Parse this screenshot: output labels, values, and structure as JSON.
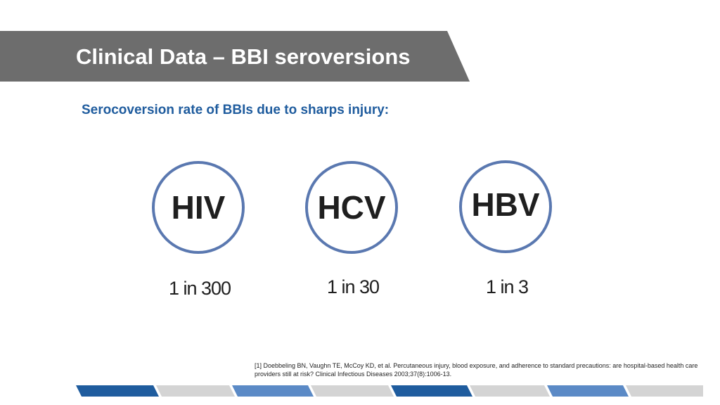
{
  "slide": {
    "title": "Clinical Data – BBI seroversions",
    "subtitle": "Serocoversion rate of BBIs due to sharps injury:",
    "viruses": [
      {
        "name": "HIV",
        "rate": "1 in 300"
      },
      {
        "name": "HCV",
        "rate": "1 in 30"
      },
      {
        "name": "HBV",
        "rate": "1 in 3"
      }
    ],
    "reference": "[1] Doebbeling BN, Vaughn TE, McCoy KD, et al. Percutaneous injury, blood exposure, and adherence to standard precautions: are hospital-based health care providers still at risk? Clinical Infectious Diseases 2003;37(8):1006-13."
  },
  "colors": {
    "banner": "#6d6d6d",
    "subtitle": "#1f5c9e",
    "circle_border": "#5a78b0",
    "footer_dark_blue": "#1f5c9e",
    "footer_light_blue": "#5b8ac6",
    "footer_gray": "#d4d4d4"
  }
}
